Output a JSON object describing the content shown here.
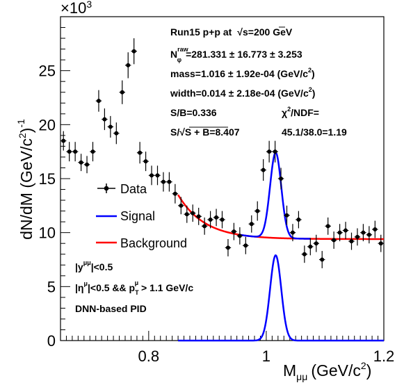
{
  "chart_data": {
    "type": "scatter",
    "title": "",
    "multiplier_label": "×10",
    "multiplier_exp": "3",
    "xlabel": {
      "main": "M",
      "sub": "μμ",
      "unit": "(GeV/c",
      "sup": "2",
      "close": ")"
    },
    "ylabel": {
      "main": "dN/dM (GeV/c",
      "sup": "2",
      "close": ")",
      "sup2": "-1"
    },
    "xlim": [
      0.65,
      1.2
    ],
    "ylim": [
      0,
      30
    ],
    "x_ticks": [
      0.8,
      1,
      1.2
    ],
    "x_tick_labels": [
      "0.8",
      "1",
      "1.2"
    ],
    "y_ticks": [
      0,
      5,
      10,
      15,
      20,
      25
    ],
    "y_tick_labels": [
      "0",
      "5",
      "10",
      "15",
      "20",
      "25"
    ],
    "colors": {
      "data": "#000000",
      "signal": "#0000ff",
      "background": "#ff0000",
      "total": "#0000ff"
    },
    "series": [
      {
        "name": "Data",
        "x": [
          0.655,
          0.665,
          0.675,
          0.685,
          0.695,
          0.705,
          0.715,
          0.725,
          0.735,
          0.745,
          0.755,
          0.765,
          0.775,
          0.785,
          0.795,
          0.805,
          0.815,
          0.825,
          0.835,
          0.845,
          0.855,
          0.865,
          0.875,
          0.885,
          0.895,
          0.905,
          0.915,
          0.925,
          0.935,
          0.945,
          0.955,
          0.965,
          0.975,
          0.985,
          0.995,
          1.005,
          1.015,
          1.025,
          1.035,
          1.045,
          1.055,
          1.065,
          1.075,
          1.085,
          1.095,
          1.105,
          1.115,
          1.125,
          1.135,
          1.145,
          1.155,
          1.165,
          1.175,
          1.185,
          1.195
        ],
        "y": [
          18.5,
          17.5,
          17.5,
          16.5,
          16.3,
          17.5,
          22.2,
          20.5,
          19.8,
          19.2,
          23.0,
          25.5,
          26.8,
          17.4,
          16.6,
          15.3,
          15.3,
          14.7,
          14.7,
          13.6,
          12.5,
          11.7,
          11.8,
          11.5,
          10.6,
          11.2,
          11.4,
          11.2,
          8.6,
          10.1,
          9.7,
          8.8,
          10.8,
          12.0,
          15.8,
          17.5,
          17.5,
          15.0,
          11.6,
          10.0,
          11.2,
          8.0,
          8.7,
          9.0,
          7.5,
          10.6,
          9.3,
          10.0,
          10.2,
          9.2,
          9.6,
          10.0,
          9.8,
          10.3,
          9.0
        ],
        "err": [
          0.9,
          0.9,
          0.9,
          0.8,
          0.8,
          0.9,
          1.0,
          1.0,
          1.0,
          1.0,
          1.1,
          1.2,
          1.2,
          1.0,
          0.9,
          0.9,
          0.9,
          0.9,
          0.9,
          0.9,
          0.8,
          0.8,
          0.8,
          0.8,
          0.8,
          0.8,
          0.8,
          0.8,
          0.8,
          0.8,
          0.8,
          0.8,
          0.8,
          0.9,
          1.0,
          1.0,
          1.0,
          1.0,
          0.9,
          0.8,
          0.8,
          0.8,
          0.8,
          0.8,
          0.8,
          0.8,
          0.8,
          0.8,
          0.8,
          0.8,
          0.8,
          0.8,
          0.8,
          0.8,
          0.8
        ]
      },
      {
        "name": "Signal",
        "model": "gaussian",
        "mean": 1.016,
        "sigma": 0.0095,
        "amplitude": 7.9,
        "x_range": [
          0.85,
          1.2
        ]
      },
      {
        "name": "Background",
        "model": "exponential",
        "x_range": [
          0.85,
          1.2
        ],
        "plateau": 9.4,
        "amplitude": 4.1,
        "decay": 0.045
      }
    ],
    "legend": {
      "position": "left",
      "entries": [
        {
          "label": "Data",
          "style": "marker"
        },
        {
          "label": "Signal",
          "style": "line-blue"
        },
        {
          "label": "Background",
          "style": "line-red"
        }
      ]
    },
    "annotations": {
      "run": "Run15 p+p at",
      "sqrt": "√",
      "energy": "s=200 GeV",
      "n_label": "N",
      "n_sub": "φ",
      "n_sup": "raw",
      "n_value": "=281.331 ± 16.773 ± 3.253",
      "mass": "mass=1.016 ± 1.92e-04 (GeV/c",
      "width": "width=0.014 ± 2.18e-04 (GeV/c",
      "sup2": "2",
      "close": ")",
      "sb": "S/B=0.336",
      "chi2_label": "χ",
      "chi2_sup": "2",
      "chi2_rest": "/NDF=",
      "chi2_value": "45.1/38.0=1.19",
      "signif_a": "S/",
      "signif_b": "S + B=8.407",
      "cut_y_a": "|y",
      "cut_y_sup": "μμ",
      "cut_y_b": "|<0.5",
      "cut_eta_a": "|η",
      "cut_eta_sup": "μ",
      "cut_eta_b": "|<0.5 && p",
      "cut_pt_sub": "T",
      "cut_pt_sup": "μ",
      "cut_eta_c": " > 1.1 GeV/c",
      "pid": "DNN-based PID"
    }
  }
}
